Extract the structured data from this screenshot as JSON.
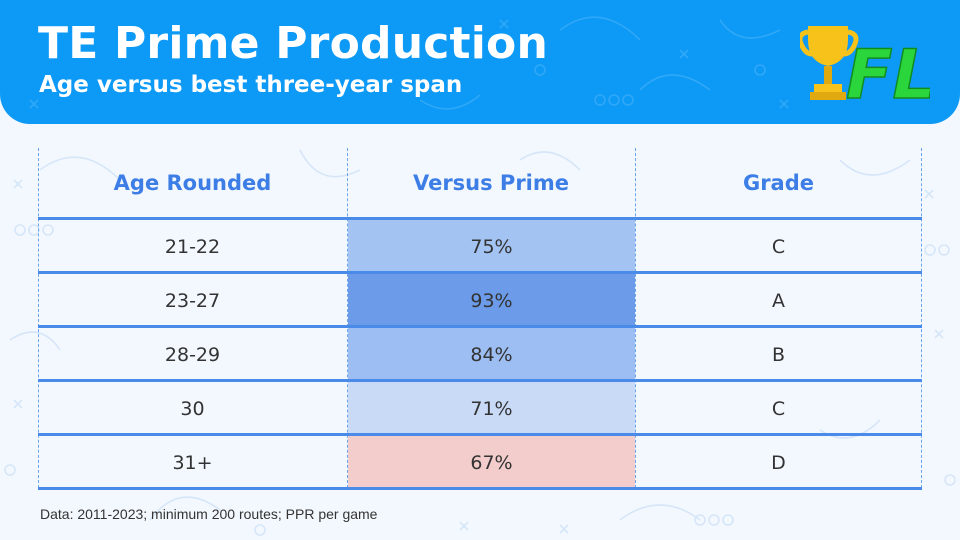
{
  "header": {
    "title": "TE Prime Production",
    "subtitle": "Age versus best three-year span",
    "logo_text": "FL",
    "accent": "#0d99f6"
  },
  "table": {
    "columns": [
      "Age Rounded",
      "Versus Prime",
      "Grade"
    ],
    "rows": [
      {
        "age": "21-22",
        "versus_prime": "75%",
        "grade": "C",
        "cell_color": "#a3c3f3"
      },
      {
        "age": "23-27",
        "versus_prime": "93%",
        "grade": "A",
        "cell_color": "#6c9ce9"
      },
      {
        "age": "28-29",
        "versus_prime": "84%",
        "grade": "B",
        "cell_color": "#9dbef2"
      },
      {
        "age": "30",
        "versus_prime": "71%",
        "grade": "C",
        "cell_color": "#c9daf7"
      },
      {
        "age": "31+",
        "versus_prime": "67%",
        "grade": "D",
        "cell_color": "#f3cccc"
      }
    ]
  },
  "footnote": "Data: 2011-2023; minimum 200 routes; PPR per game"
}
